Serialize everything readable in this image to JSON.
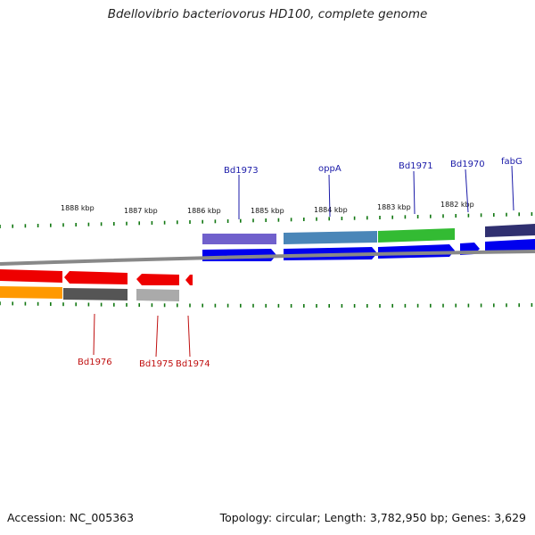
{
  "title": "Bdellovibrio bacteriovorus HD100, complete genome",
  "footer": {
    "accession": "Accession: NC_005363",
    "summary": "Topology: circular; Length: 3,782,950 bp; Genes: 3,629"
  },
  "scale_labels": [
    "1888 kbp",
    "1887 kbp",
    "1886 kbp",
    "1885 kbp",
    "1884 kbp",
    "1883 kbp",
    "1882 kbp"
  ],
  "gene_labels_plus": [
    "Bd1973",
    "oppA",
    "Bd1971",
    "Bd1970",
    "fabG"
  ],
  "gene_labels_minus": [
    "Bd1976",
    "Bd1975",
    "Bd1974"
  ],
  "colors": {
    "plus_strand": "#0000ee",
    "minus_strand": "#ee0000",
    "tick": "#117711",
    "backbone": "#888888",
    "cog_purple": "#7060cc",
    "cog_steelblue": "#4a86b8",
    "cog_green": "#33bb33",
    "cog_navy": "#303070",
    "cog_orange": "#ff9900",
    "cog_darkgray": "#555555",
    "cog_lightgray": "#aaaaaa"
  }
}
